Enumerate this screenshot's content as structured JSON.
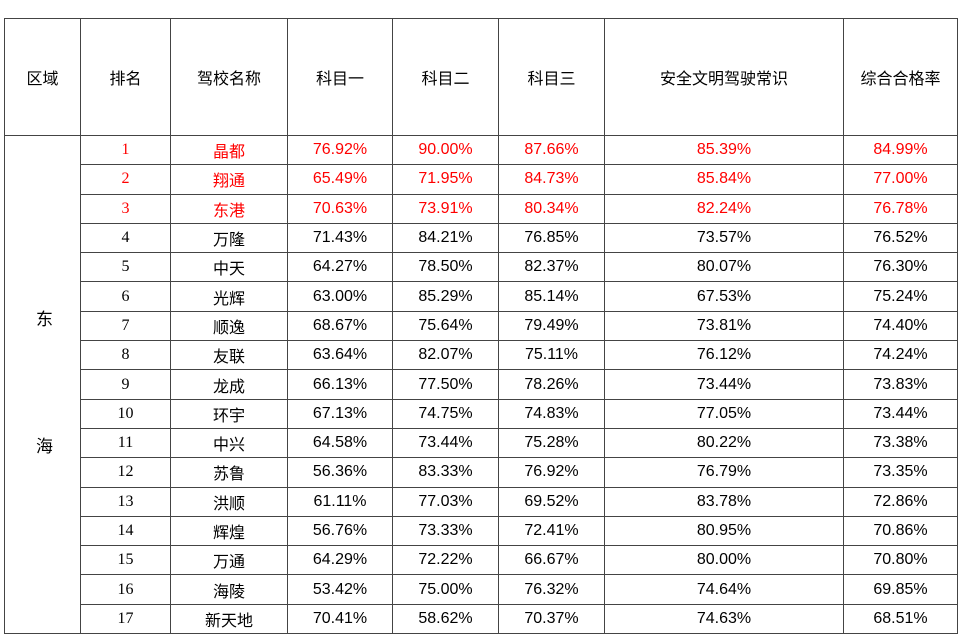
{
  "table": {
    "header": [
      "区域",
      "排名",
      "驾校名称",
      "科目一",
      "科目二",
      "科目三",
      "安全文明驾驶常识",
      "综合合格率"
    ],
    "region": "东海",
    "rows": [
      [
        1,
        "晶都",
        "76.92%",
        "90.00%",
        "87.66%",
        "85.39%",
        "84.99%"
      ],
      [
        2,
        "翔通",
        "65.49%",
        "71.95%",
        "84.73%",
        "85.84%",
        "77.00%"
      ],
      [
        3,
        "东港",
        "70.63%",
        "73.91%",
        "80.34%",
        "82.24%",
        "76.78%"
      ],
      [
        4,
        "万隆",
        "71.43%",
        "84.21%",
        "76.85%",
        "73.57%",
        "76.52%"
      ],
      [
        5,
        "中天",
        "64.27%",
        "78.50%",
        "82.37%",
        "80.07%",
        "76.30%"
      ],
      [
        6,
        "光辉",
        "63.00%",
        "85.29%",
        "85.14%",
        "67.53%",
        "75.24%"
      ],
      [
        7,
        "顺逸",
        "68.67%",
        "75.64%",
        "79.49%",
        "73.81%",
        "74.40%"
      ],
      [
        8,
        "友联",
        "63.64%",
        "82.07%",
        "75.11%",
        "76.12%",
        "74.24%"
      ],
      [
        9,
        "龙成",
        "66.13%",
        "77.50%",
        "78.26%",
        "73.44%",
        "73.83%"
      ],
      [
        10,
        "环宇",
        "67.13%",
        "74.75%",
        "74.83%",
        "77.05%",
        "73.44%"
      ],
      [
        11,
        "中兴",
        "64.58%",
        "73.44%",
        "75.28%",
        "80.22%",
        "73.38%"
      ],
      [
        12,
        "苏鲁",
        "56.36%",
        "83.33%",
        "76.92%",
        "76.79%",
        "73.35%"
      ],
      [
        13,
        "洪顺",
        "61.11%",
        "77.03%",
        "69.52%",
        "83.78%",
        "72.86%"
      ],
      [
        14,
        "辉煌",
        "56.76%",
        "73.33%",
        "72.41%",
        "80.95%",
        "70.86%"
      ],
      [
        15,
        "万通",
        "64.29%",
        "72.22%",
        "66.67%",
        "80.00%",
        "70.80%"
      ],
      [
        16,
        "海陵",
        "53.42%",
        "75.00%",
        "76.32%",
        "74.64%",
        "69.85%"
      ],
      [
        17,
        "新天地",
        "70.41%",
        "58.62%",
        "70.37%",
        "74.63%",
        "68.51%"
      ]
    ]
  }
}
